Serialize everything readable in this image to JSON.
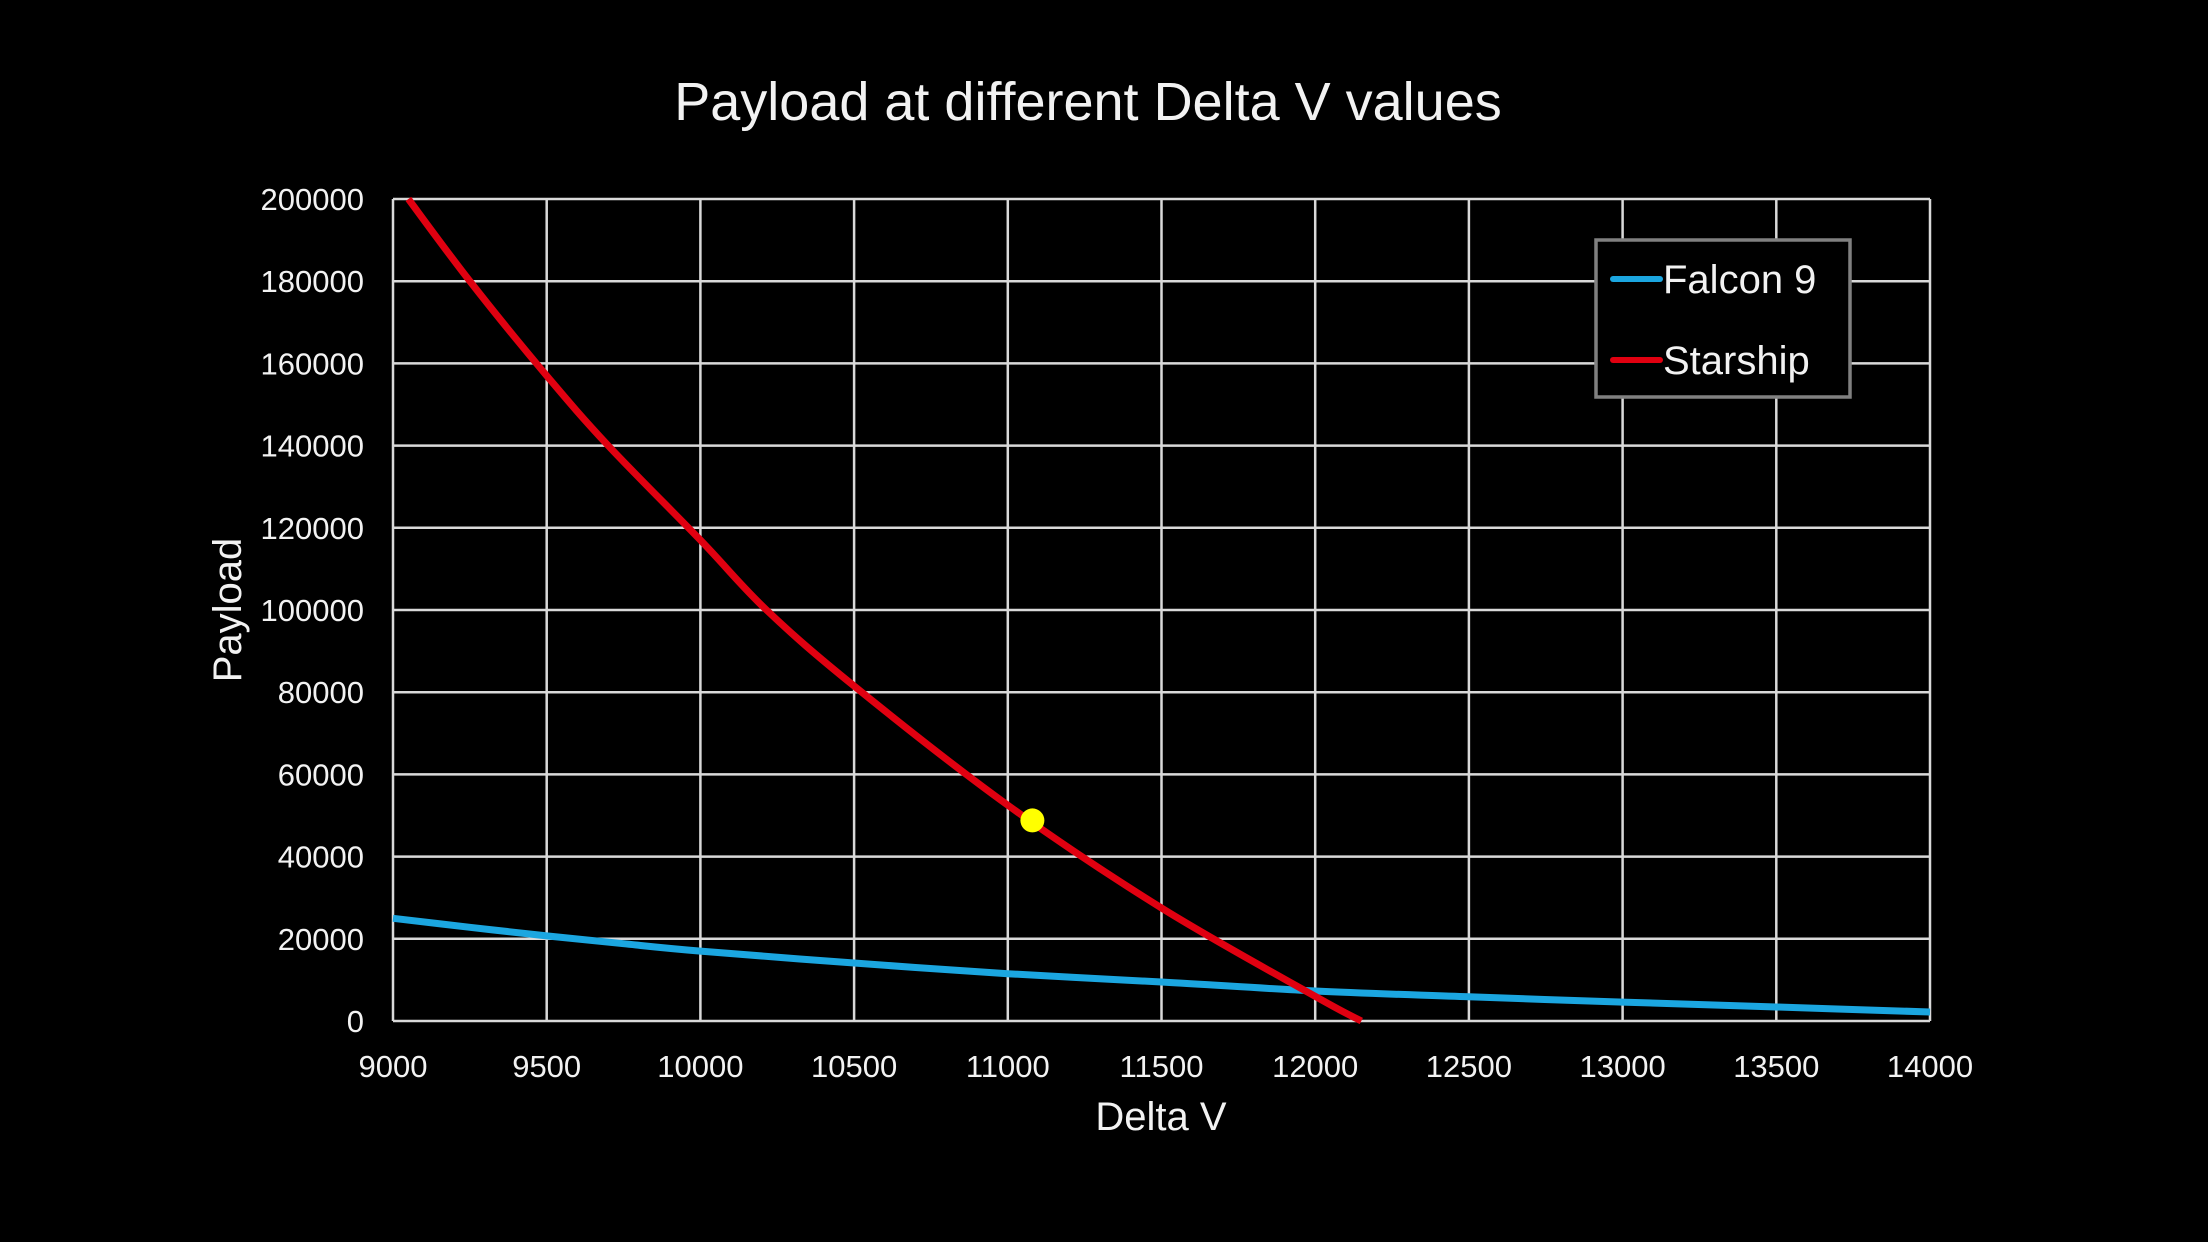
{
  "chart_data": {
    "type": "line",
    "title": "Payload at different Delta V values",
    "xlabel": "Delta V",
    "ylabel": "Payload",
    "xlim": [
      9000,
      14000
    ],
    "ylim": [
      0,
      200000
    ],
    "x_ticks": [
      9000,
      9500,
      10000,
      10500,
      11000,
      11500,
      12000,
      12500,
      13000,
      13500,
      14000
    ],
    "y_ticks": [
      0,
      20000,
      40000,
      60000,
      80000,
      100000,
      120000,
      140000,
      160000,
      180000,
      200000
    ],
    "grid": true,
    "legend_position": "top-right",
    "series": [
      {
        "name": "Falcon 9",
        "color": "#1ba6e0",
        "x": [
          9000,
          9250,
          9500,
          9750,
          10000,
          10500,
          11000,
          11500,
          12000,
          12500,
          13000,
          13500,
          14000
        ],
        "y": [
          25000,
          22800,
          20700,
          18800,
          17000,
          14100,
          11500,
          9500,
          7300,
          5900,
          4600,
          3400,
          2200
        ]
      },
      {
        "name": "Starship",
        "color": "#e00010",
        "x": [
          9050,
          9250,
          9500,
          9700,
          10000,
          10215,
          10500,
          11000,
          11500,
          12000,
          12150
        ],
        "y": [
          200000,
          180000,
          157000,
          140000,
          117000,
          100000,
          81500,
          52500,
          27500,
          6000,
          0
        ]
      }
    ],
    "annotations": [
      {
        "type": "point",
        "x": 11080,
        "y": 48800,
        "color": "#ffff00",
        "label": ""
      }
    ]
  },
  "colors": {
    "background": "#000000",
    "grid": "#d9d9d9",
    "text": "#f2f2f2",
    "legend_border": "#808080"
  }
}
